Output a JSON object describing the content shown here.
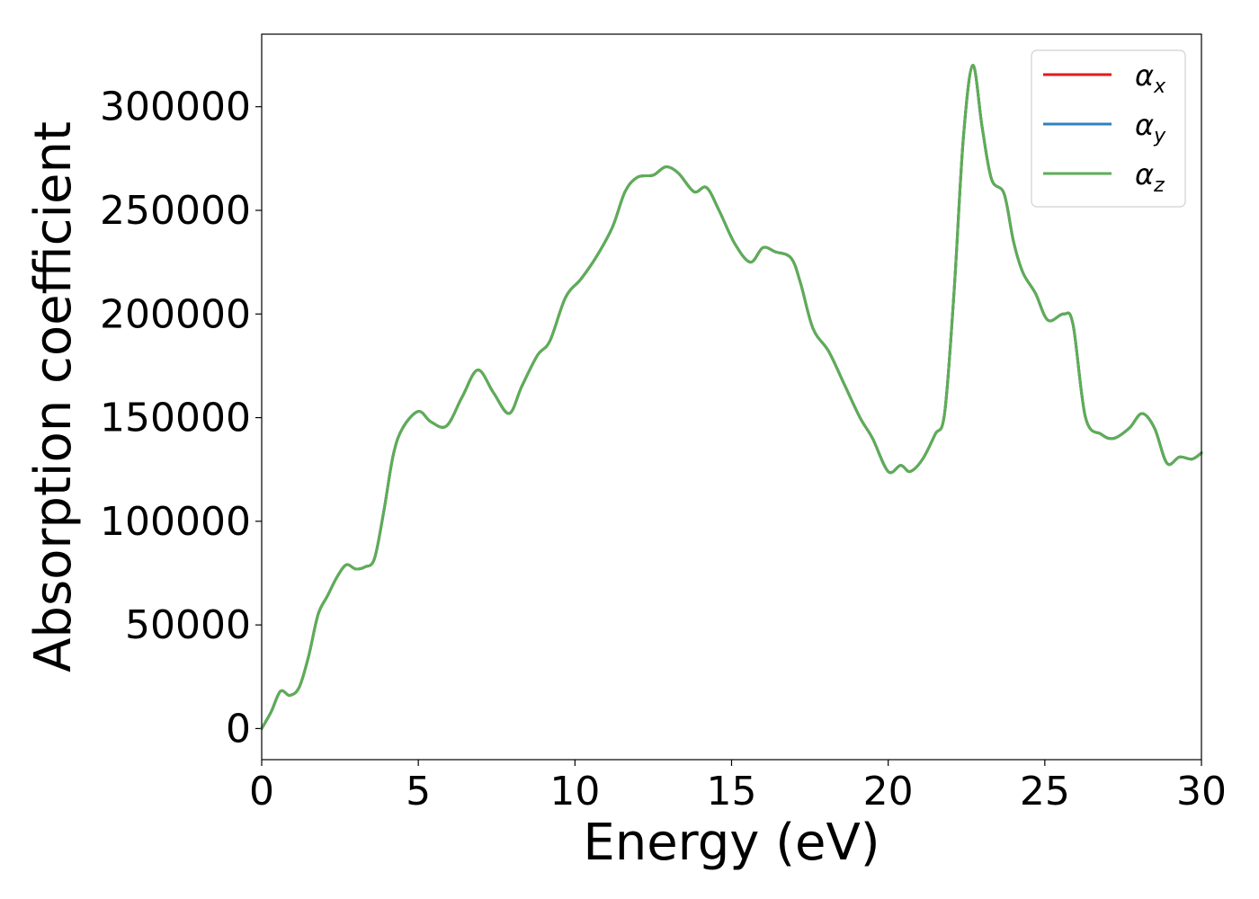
{
  "chart_data": {
    "type": "line",
    "title": "",
    "xlabel": "Energy (eV)",
    "ylabel": "Absorption coefficient",
    "xlim": [
      0,
      30
    ],
    "ylim": [
      -15000,
      335000
    ],
    "xticks": [
      0,
      5,
      10,
      15,
      20,
      25,
      30
    ],
    "yticks": [
      0,
      50000,
      100000,
      150000,
      200000,
      250000,
      300000
    ],
    "xtick_labels": [
      "0",
      "5",
      "10",
      "15",
      "20",
      "25",
      "30"
    ],
    "ytick_labels": [
      "0",
      "50000",
      "100000",
      "150000",
      "200000",
      "250000",
      "300000"
    ],
    "grid": false,
    "legend_position": "top-right",
    "x": [
      0,
      0.3,
      0.6,
      0.9,
      1.2,
      1.5,
      1.8,
      2.1,
      2.4,
      2.7,
      3.0,
      3.3,
      3.6,
      3.9,
      4.2,
      4.5,
      5.0,
      5.4,
      5.9,
      6.4,
      6.9,
      7.4,
      7.9,
      8.3,
      8.8,
      9.2,
      9.7,
      10.2,
      10.7,
      11.2,
      11.6,
      12.0,
      12.5,
      12.9,
      13.3,
      13.8,
      14.2,
      14.6,
      15.1,
      15.6,
      16.0,
      16.4,
      16.9,
      17.2,
      17.6,
      18.1,
      18.6,
      19.1,
      19.5,
      20.0,
      20.4,
      20.7,
      21.1,
      21.5,
      21.8,
      22.1,
      22.4,
      22.7,
      23.0,
      23.3,
      23.7,
      24.0,
      24.3,
      24.7,
      25.1,
      25.6,
      25.9,
      26.3,
      26.8,
      27.2,
      27.7,
      28.1,
      28.5,
      28.9,
      29.3,
      29.7,
      30.0
    ],
    "series": [
      {
        "name": "α_x",
        "legend_base": "α",
        "legend_sub": "x",
        "color": "#e31a1c",
        "values": [
          0,
          8000,
          18000,
          16000,
          20000,
          35000,
          55000,
          64000,
          73000,
          79000,
          77000,
          78000,
          82000,
          105000,
          132000,
          145000,
          153000,
          148000,
          146000,
          160000,
          173000,
          162000,
          152000,
          165000,
          180000,
          187000,
          208000,
          217000,
          228000,
          242000,
          259000,
          266000,
          267000,
          271000,
          268000,
          259000,
          261000,
          250000,
          234000,
          225000,
          232000,
          230000,
          227000,
          215000,
          193000,
          182000,
          166000,
          150000,
          140000,
          124000,
          127000,
          124000,
          130000,
          142000,
          152000,
          210000,
          285000,
          320000,
          290000,
          265000,
          258000,
          235000,
          220000,
          210000,
          197000,
          200000,
          195000,
          150000,
          142000,
          140000,
          145000,
          152000,
          145000,
          128000,
          131000,
          130000,
          133000
        ]
      },
      {
        "name": "α_y",
        "legend_base": "α",
        "legend_sub": "y",
        "color": "#3182bd",
        "values": [
          0,
          8000,
          18000,
          16000,
          20000,
          35000,
          55000,
          64000,
          73000,
          79000,
          77000,
          78000,
          82000,
          105000,
          132000,
          145000,
          153000,
          148000,
          146000,
          160000,
          173000,
          162000,
          152000,
          165000,
          180000,
          187000,
          208000,
          217000,
          228000,
          242000,
          259000,
          266000,
          267000,
          271000,
          268000,
          259000,
          261000,
          250000,
          234000,
          225000,
          232000,
          230000,
          227000,
          215000,
          193000,
          182000,
          166000,
          150000,
          140000,
          124000,
          127000,
          124000,
          130000,
          142000,
          152000,
          210000,
          285000,
          320000,
          290000,
          265000,
          258000,
          235000,
          220000,
          210000,
          197000,
          200000,
          195000,
          150000,
          142000,
          140000,
          145000,
          152000,
          145000,
          128000,
          131000,
          130000,
          133000
        ]
      },
      {
        "name": "α_z",
        "legend_base": "α",
        "legend_sub": "z",
        "color": "#5cae55",
        "values": [
          0,
          8000,
          18000,
          16000,
          20000,
          35000,
          55000,
          64000,
          73000,
          79000,
          77000,
          78000,
          82000,
          105000,
          132000,
          145000,
          153000,
          148000,
          146000,
          160000,
          173000,
          162000,
          152000,
          165000,
          180000,
          187000,
          208000,
          217000,
          228000,
          242000,
          259000,
          266000,
          267000,
          271000,
          268000,
          259000,
          261000,
          250000,
          234000,
          225000,
          232000,
          230000,
          227000,
          215000,
          193000,
          182000,
          166000,
          150000,
          140000,
          124000,
          127000,
          124000,
          130000,
          142000,
          152000,
          210000,
          285000,
          320000,
          290000,
          265000,
          258000,
          235000,
          220000,
          210000,
          197000,
          200000,
          195000,
          150000,
          142000,
          140000,
          145000,
          152000,
          145000,
          128000,
          131000,
          130000,
          133000
        ]
      }
    ]
  }
}
